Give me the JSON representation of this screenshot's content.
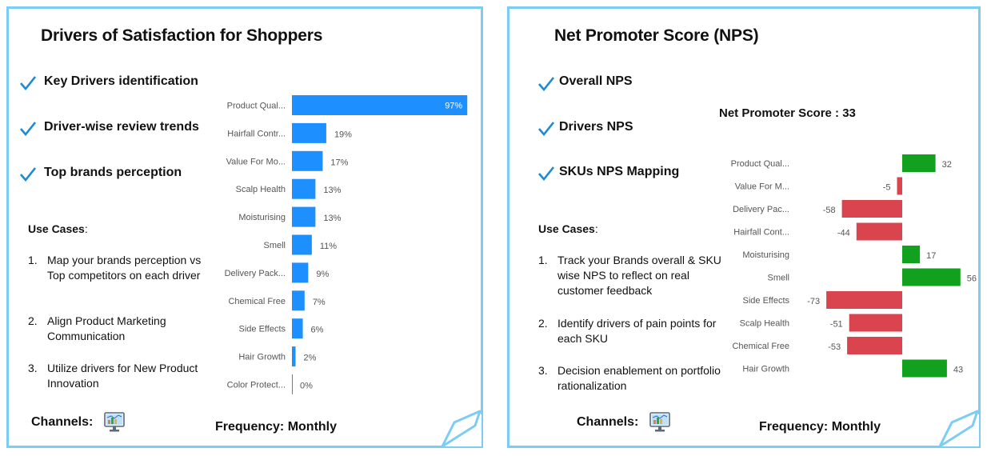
{
  "left": {
    "title": "Drivers of Satisfaction for Shoppers",
    "features": [
      "Key Drivers identification",
      "Driver-wise review trends",
      "Top brands perception"
    ],
    "use_cases_label": "Use Cases",
    "use_cases_colon": ":",
    "use_cases": [
      {
        "num": "1.",
        "text": "Map your brands perception vs Top competitors on each driver"
      },
      {
        "num": "2.",
        "text": "Align Product Marketing Communication"
      },
      {
        "num": "3.",
        "text": "Utilize drivers for New Product Innovation"
      }
    ],
    "channels_label": "Channels:",
    "frequency_label": "Frequency: Monthly",
    "icons": {
      "check": "check-icon",
      "channel": "monitor-icon"
    }
  },
  "right": {
    "title": "Net Promoter Score (NPS)",
    "features": [
      "Overall NPS",
      "Drivers NPS",
      "SKUs NPS Mapping"
    ],
    "nps_summary": "Net Promoter Score :  33",
    "use_cases_label": "Use Cases",
    "use_cases_colon": ":",
    "use_cases": [
      {
        "num": "1.",
        "text": "Track your Brands overall & SKU wise NPS to reflect on real customer feedback"
      },
      {
        "num": "2.",
        "text": "Identify drivers of pain points for each SKU"
      },
      {
        "num": "3.",
        "text": "Decision enablement on portfolio rationalization"
      }
    ],
    "channels_label": "Channels:",
    "frequency_label": "Frequency: Monthly",
    "icons": {
      "check": "check-icon",
      "channel": "monitor-icon"
    }
  },
  "colors": {
    "border": "#7ccdf4",
    "check": "#1e8ad6",
    "bar_blue": "#1e8fff",
    "positive": "#12a11e",
    "negative": "#d9444f"
  },
  "chart_data": [
    {
      "type": "bar",
      "orientation": "horizontal",
      "categories": [
        "Product Qual...",
        "Hairfall Contr...",
        "Value For Mo...",
        "Scalp Health",
        "Moisturising",
        "Smell",
        "Delivery Pack...",
        "Chemical Free",
        "Side Effects",
        "Hair Growth",
        "Color Protect..."
      ],
      "values": [
        97,
        19,
        17,
        13,
        13,
        11,
        9,
        7,
        6,
        2,
        0
      ],
      "labels": [
        "97%",
        "19%",
        "17%",
        "13%",
        "13%",
        "11%",
        "9%",
        "7%",
        "6%",
        "2%",
        "0%"
      ],
      "xlim": [
        0,
        100
      ]
    },
    {
      "type": "bar",
      "orientation": "horizontal",
      "categories": [
        "Product Qual...",
        "Value For M...",
        "Delivery Pac...",
        "Hairfall Cont...",
        "Moisturising",
        "Smell",
        "Side Effects",
        "Scalp Health",
        "Chemical Free",
        "Hair Growth"
      ],
      "values": [
        32,
        -5,
        -58,
        -44,
        17,
        56,
        -73,
        -51,
        -53,
        43
      ],
      "xlim": [
        -73,
        56
      ]
    }
  ]
}
